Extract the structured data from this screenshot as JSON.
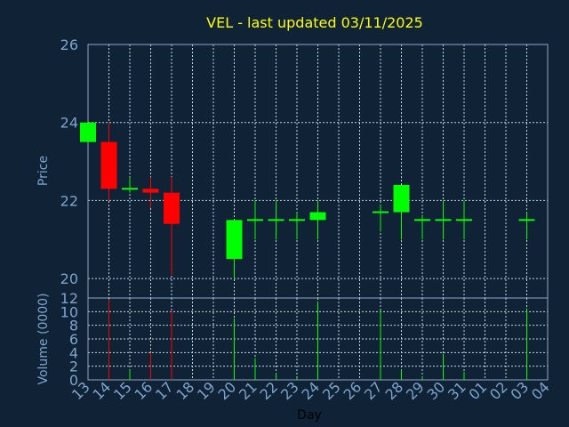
{
  "chart_data": {
    "type": "candlestick",
    "title": "VEL - last updated 03/11/2025",
    "xlabel": "Day",
    "colors": {
      "up": "#00ff00",
      "down": "#ff0000",
      "background": "#0f2236",
      "text": "#7fa4cc",
      "title": "#ffff00"
    },
    "x_tick_labels": [
      "13",
      "14",
      "15",
      "16",
      "17",
      "18",
      "19",
      "20",
      "21",
      "22",
      "23",
      "24",
      "25",
      "26",
      "27",
      "28",
      "29",
      "30",
      "31",
      "01",
      "02",
      "03",
      "04"
    ],
    "price": {
      "ylabel": "Price",
      "ylim": [
        19.5,
        26
      ],
      "yticks": [
        20,
        22,
        24,
        26
      ],
      "grid": true,
      "candles": [
        {
          "day": "13",
          "open": 23.5,
          "high": 24.0,
          "low": 23.5,
          "close": 24.0
        },
        {
          "day": "14",
          "open": 23.5,
          "high": 24.0,
          "low": 22.0,
          "close": 22.3
        },
        {
          "day": "15",
          "open": 22.3,
          "high": 22.6,
          "low": 22.2,
          "close": 22.3
        },
        {
          "day": "16",
          "open": 22.3,
          "high": 22.6,
          "low": 21.8,
          "close": 22.2
        },
        {
          "day": "17",
          "open": 22.2,
          "high": 22.6,
          "low": 20.1,
          "close": 21.4
        },
        {
          "day": "20",
          "open": 20.5,
          "high": 21.5,
          "low": 20.0,
          "close": 21.5
        },
        {
          "day": "21",
          "open": 21.5,
          "high": 22.0,
          "low": 21.0,
          "close": 21.5
        },
        {
          "day": "22",
          "open": 21.5,
          "high": 22.0,
          "low": 21.0,
          "close": 21.5
        },
        {
          "day": "23",
          "open": 21.5,
          "high": 21.7,
          "low": 21.0,
          "close": 21.5
        },
        {
          "day": "24",
          "open": 21.5,
          "high": 22.0,
          "low": 21.0,
          "close": 21.7
        },
        {
          "day": "27",
          "open": 21.7,
          "high": 21.9,
          "low": 21.2,
          "close": 21.7
        },
        {
          "day": "28",
          "open": 21.7,
          "high": 22.4,
          "low": 21.0,
          "close": 22.4
        },
        {
          "day": "29",
          "open": 21.5,
          "high": 21.6,
          "low": 21.0,
          "close": 21.5
        },
        {
          "day": "30",
          "open": 21.5,
          "high": 22.0,
          "low": 21.0,
          "close": 21.5
        },
        {
          "day": "31",
          "open": 21.5,
          "high": 22.0,
          "low": 21.0,
          "close": 21.5
        },
        {
          "day": "03",
          "open": 21.5,
          "high": 21.7,
          "low": 21.0,
          "close": 21.5
        }
      ]
    },
    "volume": {
      "ylabel": "Volume (0000)",
      "ylim": [
        0,
        12
      ],
      "yticks": [
        0,
        2,
        4,
        6,
        8,
        10,
        12
      ],
      "grid": true,
      "bars": [
        {
          "day": "14",
          "value": 11.8,
          "direction": "down"
        },
        {
          "day": "15",
          "value": 1.5,
          "direction": "up"
        },
        {
          "day": "16",
          "value": 4.0,
          "direction": "down"
        },
        {
          "day": "17",
          "value": 10.2,
          "direction": "down"
        },
        {
          "day": "20",
          "value": 9.0,
          "direction": "up"
        },
        {
          "day": "21",
          "value": 3.2,
          "direction": "up"
        },
        {
          "day": "22",
          "value": 1.0,
          "direction": "up"
        },
        {
          "day": "23",
          "value": 0.3,
          "direction": "up"
        },
        {
          "day": "24",
          "value": 11.5,
          "direction": "up"
        },
        {
          "day": "27",
          "value": 10.2,
          "direction": "up"
        },
        {
          "day": "28",
          "value": 1.5,
          "direction": "up"
        },
        {
          "day": "29",
          "value": 0.5,
          "direction": "up"
        },
        {
          "day": "30",
          "value": 3.8,
          "direction": "up"
        },
        {
          "day": "31",
          "value": 1.2,
          "direction": "up"
        },
        {
          "day": "03",
          "value": 10.5,
          "direction": "up"
        }
      ]
    }
  }
}
